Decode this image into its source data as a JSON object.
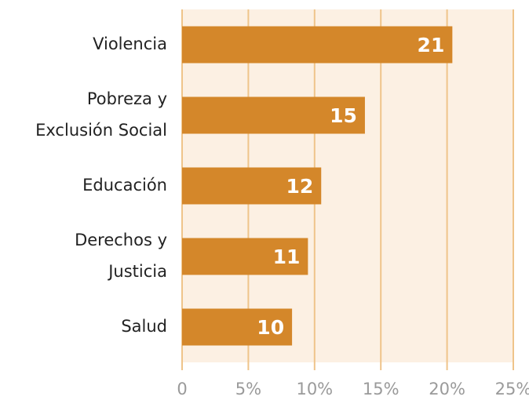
{
  "chart_data": {
    "type": "bar",
    "orientation": "horizontal",
    "categories": [
      [
        "Violencia"
      ],
      [
        "Pobreza y",
        "Exclusión Social"
      ],
      [
        "Educación"
      ],
      [
        "Derechos y",
        "Justicia"
      ],
      [
        "Salud"
      ]
    ],
    "values": [
      20.4,
      13.8,
      10.5,
      9.5,
      8.3
    ],
    "counts": [
      21,
      15,
      12,
      11,
      10
    ],
    "color": "#d4872a",
    "xlim": [
      0,
      25
    ],
    "xticks": [
      0,
      {
        "value": 5,
        "label": "5%"
      },
      {
        "value": 10,
        "label": "10%"
      },
      {
        "value": 15,
        "label": "15%"
      },
      {
        "value": 20,
        "label": "20%"
      },
      {
        "value": 25,
        "label": "25%"
      }
    ],
    "grid": true
  }
}
